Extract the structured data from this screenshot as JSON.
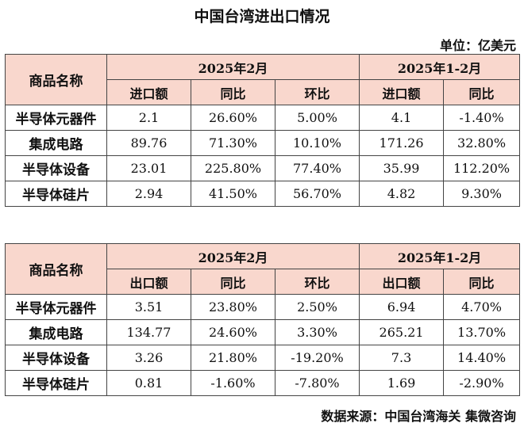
{
  "title": "中国台湾进出口情况",
  "unit": "单位：亿美元",
  "source": "数据来源：中国台湾海关  集微咨询",
  "import_table": {
    "corner": "商品名称",
    "period1": "2025年2月",
    "period2": "2025年1-2月",
    "subheaders": [
      "进口额",
      "同比",
      "环比",
      "进口额",
      "同比"
    ],
    "rows": [
      {
        "name": "半导体元器件",
        "cells": [
          "2.1",
          "26.60%",
          "5.00%",
          "4.1",
          "-1.40%"
        ]
      },
      {
        "name": "集成电路",
        "cells": [
          "89.76",
          "71.30%",
          "10.10%",
          "171.26",
          "32.80%"
        ]
      },
      {
        "name": "半导体设备",
        "cells": [
          "23.01",
          "225.80%",
          "77.40%",
          "35.99",
          "112.20%"
        ]
      },
      {
        "name": "半导体硅片",
        "cells": [
          "2.94",
          "41.50%",
          "56.70%",
          "4.82",
          "9.30%"
        ]
      }
    ]
  },
  "export_table": {
    "corner": "商品名称",
    "period1": "2025年2月",
    "period2": "2025年1-2月",
    "subheaders": [
      "出口额",
      "同比",
      "环比",
      "出口额",
      "同比"
    ],
    "rows": [
      {
        "name": "半导体元器件",
        "cells": [
          "3.51",
          "23.80%",
          "2.50%",
          "6.94",
          "4.70%"
        ]
      },
      {
        "name": "集成电路",
        "cells": [
          "134.77",
          "24.60%",
          "3.30%",
          "265.21",
          "13.70%"
        ]
      },
      {
        "name": "半导体设备",
        "cells": [
          "3.26",
          "21.80%",
          "-19.20%",
          "7.3",
          "14.40%"
        ]
      },
      {
        "name": "半导体硅片",
        "cells": [
          "0.81",
          "-1.60%",
          "-7.80%",
          "1.69",
          "-2.90%"
        ]
      }
    ]
  }
}
